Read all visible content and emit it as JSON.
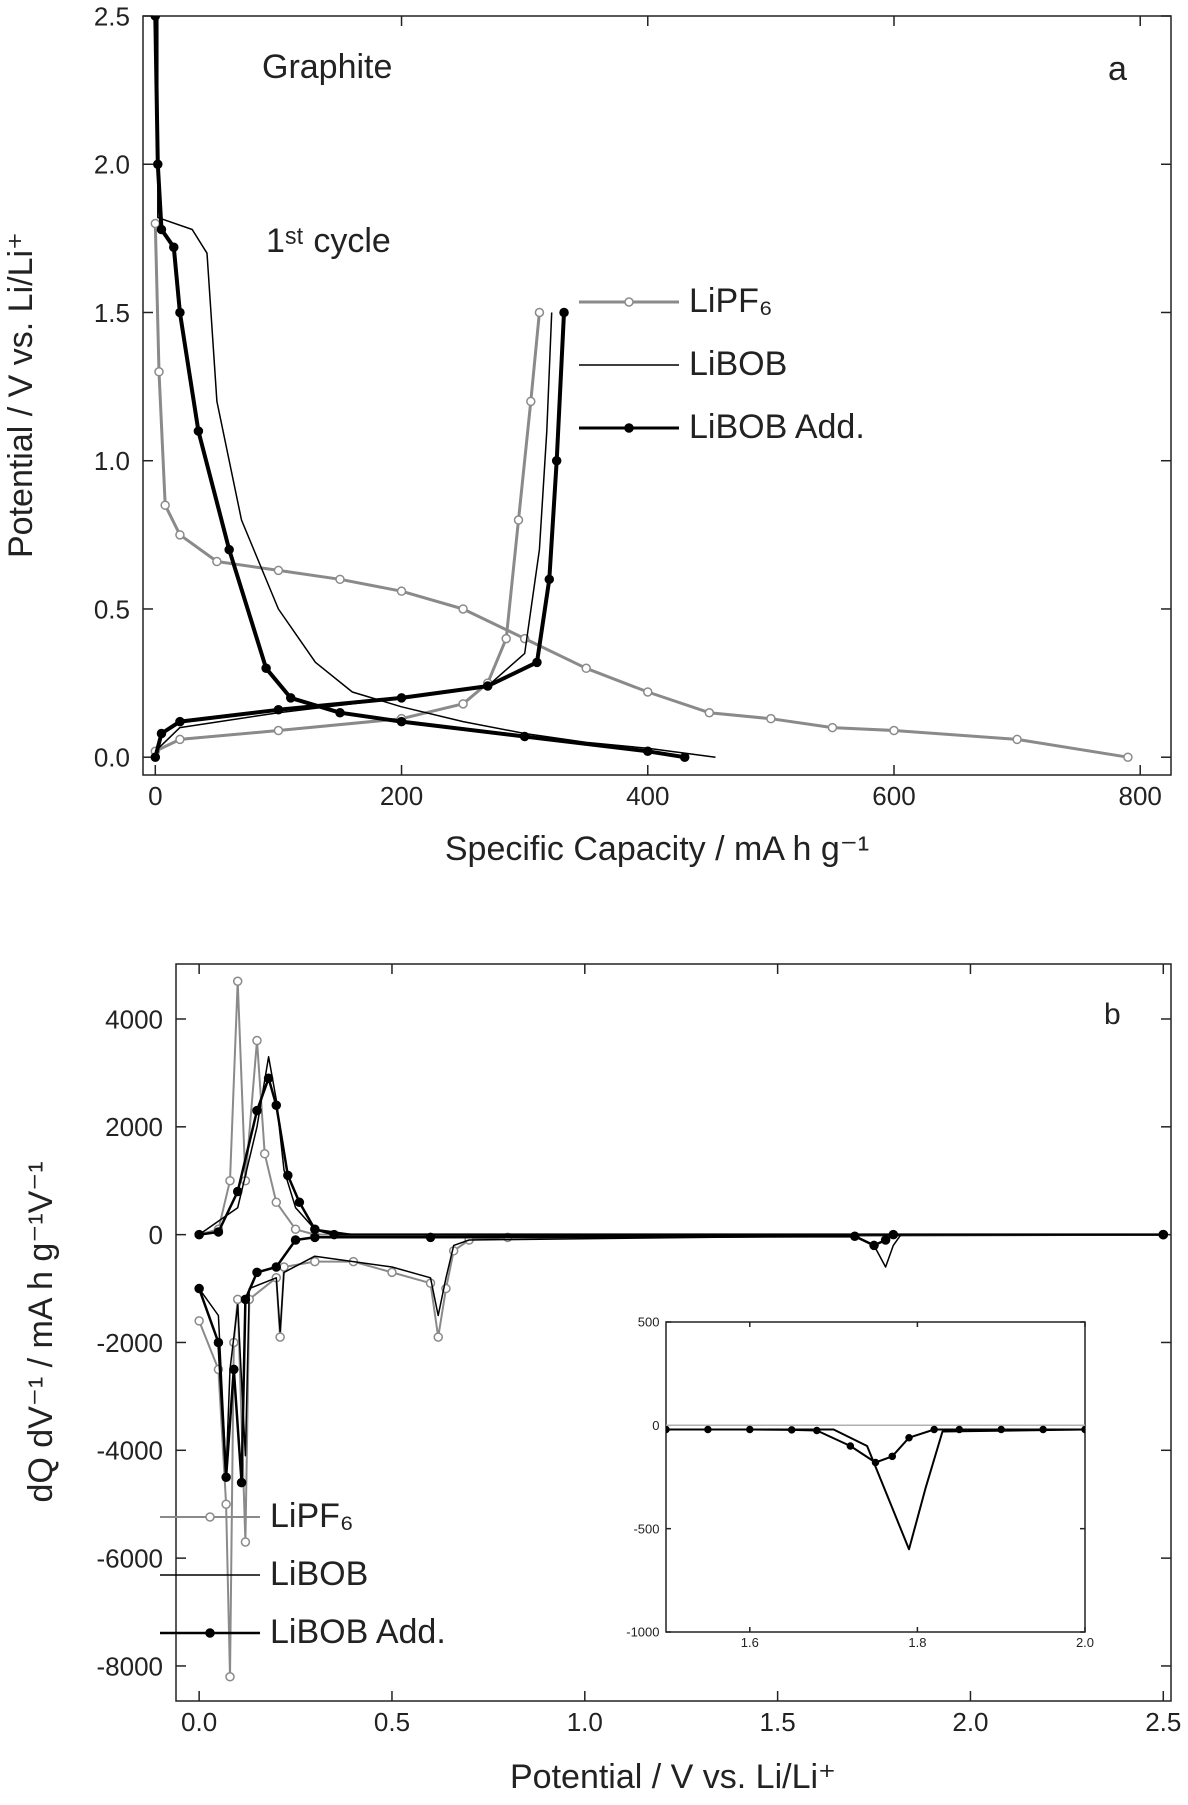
{
  "chart_data": [
    {
      "type": "line",
      "x_label": "Specific Capacity / mA h g⁻¹",
      "y_label": "Potential / V vs. Li/Li⁺",
      "annotations": [
        "Graphite",
        "1ˢᵗ cycle",
        "a"
      ],
      "xlim": [
        -10,
        825
      ],
      "ylim": [
        -0.06,
        2.5
      ],
      "xticks": [
        0,
        200,
        400,
        600,
        800
      ],
      "yticks": [
        {
          "value": 0,
          "label": "0.0"
        },
        0.5,
        {
          "value": 1,
          "label": "1.0"
        },
        1.5,
        {
          "value": 2,
          "label": "2.0"
        },
        2.5
      ],
      "grid": false,
      "legend": "right",
      "series": [
        {
          "name": "LiPF₆",
          "color": "#8a8a8a",
          "marker": "circle-open",
          "line_width": 3,
          "x": [
            0,
            3,
            8,
            20,
            50,
            100,
            150,
            200,
            250,
            300,
            350,
            400,
            450,
            500,
            550,
            600,
            700,
            790,
            null,
            0,
            20,
            100,
            200,
            250,
            270,
            285,
            295,
            305,
            312
          ],
          "values": [
            1.8,
            1.3,
            0.85,
            0.75,
            0.66,
            0.63,
            0.6,
            0.56,
            0.5,
            0.4,
            0.3,
            0.22,
            0.15,
            0.13,
            0.1,
            0.09,
            0.06,
            0.0,
            null,
            0.02,
            0.06,
            0.09,
            0.13,
            0.18,
            0.25,
            0.4,
            0.8,
            1.2,
            1.5
          ]
        },
        {
          "name": "LiBOB",
          "color": "#000000",
          "marker": "none",
          "line_width": 1.5,
          "x": [
            2,
            2,
            30,
            42,
            50,
            70,
            100,
            130,
            160,
            200,
            250,
            300,
            350,
            400,
            455,
            null,
            0,
            20,
            100,
            200,
            270,
            300,
            312,
            318,
            322
          ],
          "values": [
            2.5,
            1.82,
            1.78,
            1.7,
            1.2,
            0.8,
            0.5,
            0.32,
            0.22,
            0.17,
            0.12,
            0.08,
            0.05,
            0.03,
            0.0,
            null,
            0.02,
            0.1,
            0.15,
            0.2,
            0.24,
            0.35,
            0.7,
            1.1,
            1.5
          ]
        },
        {
          "name": "LiBOB Add.",
          "color": "#000000",
          "marker": "circle-filled",
          "line_width": 4,
          "x": [
            0,
            2,
            5,
            15,
            20,
            35,
            60,
            90,
            110,
            150,
            200,
            300,
            400,
            430,
            null,
            0,
            5,
            20,
            100,
            200,
            270,
            310,
            320,
            326,
            332
          ],
          "values": [
            2.5,
            2.0,
            1.78,
            1.72,
            1.5,
            1.1,
            0.7,
            0.3,
            0.2,
            0.15,
            0.12,
            0.07,
            0.02,
            0.0,
            null,
            0.0,
            0.08,
            0.12,
            0.16,
            0.2,
            0.24,
            0.32,
            0.6,
            1.0,
            1.5
          ]
        }
      ]
    },
    {
      "type": "line",
      "x_label": "Potential / V vs. Li/Li⁺",
      "y_label": "dQ dV⁻¹ / mA h g⁻¹V⁻¹",
      "annotations": [
        "b"
      ],
      "xlim": [
        -0.06,
        2.52
      ],
      "ylim": [
        -8650,
        5020
      ],
      "xticks": [
        {
          "value": 0,
          "label": "0.0"
        },
        0.5,
        {
          "value": 1,
          "label": "1.0"
        },
        1.5,
        {
          "value": 2,
          "label": "2.0"
        },
        2.5
      ],
      "yticks": [
        -8000,
        -6000,
        -4000,
        -2000,
        0,
        2000,
        4000
      ],
      "grid": false,
      "legend": "lower left",
      "series": [
        {
          "name": "LiPF₆",
          "color": "#8a8a8a",
          "marker": "circle-open",
          "line_width": 2,
          "x": [
            0,
            0.05,
            0.08,
            0.1,
            0.12,
            0.15,
            0.17,
            0.2,
            0.25,
            0.3,
            2.5,
            null,
            0,
            0.05,
            0.07,
            0.08,
            0.09,
            0.1,
            0.12,
            0.13,
            0.2,
            0.21,
            0.22,
            0.3,
            0.4,
            0.5,
            0.6,
            0.62,
            0.64,
            0.66,
            0.7,
            0.8,
            2.5
          ],
          "values": [
            0,
            100,
            1000,
            4700,
            1000,
            3600,
            1500,
            600,
            100,
            0,
            0,
            null,
            -1600,
            -2500,
            -5000,
            -8200,
            -2000,
            -1200,
            -5700,
            -1200,
            -800,
            -1900,
            -600,
            -500,
            -500,
            -700,
            -900,
            -1900,
            -1000,
            -300,
            -100,
            -50,
            0
          ]
        },
        {
          "name": "LiBOB",
          "color": "#000000",
          "marker": "none",
          "line_width": 1.5,
          "x": [
            0,
            0.1,
            0.15,
            0.18,
            0.2,
            0.22,
            0.25,
            0.3,
            0.4,
            2.5,
            null,
            0,
            0.05,
            0.07,
            0.08,
            0.1,
            0.12,
            0.13,
            0.2,
            0.21,
            0.22,
            0.3,
            0.5,
            0.6,
            0.62,
            0.64,
            0.66,
            0.7,
            1.7,
            1.75,
            1.78,
            1.8,
            1.82,
            2.5
          ],
          "values": [
            0,
            500,
            2000,
            3300,
            2500,
            1200,
            500,
            100,
            0,
            0,
            null,
            -1000,
            -1500,
            -4400,
            -2500,
            -1300,
            -4100,
            -1000,
            -800,
            -1800,
            -700,
            -400,
            -600,
            -800,
            -1500,
            -800,
            -200,
            -100,
            -20,
            -200,
            -600,
            -200,
            0,
            0
          ]
        },
        {
          "name": "LiBOB Add.",
          "color": "#000000",
          "marker": "circle-filled",
          "line_width": 2.5,
          "x": [
            0,
            0.05,
            0.1,
            0.15,
            0.18,
            0.2,
            0.23,
            0.26,
            0.3,
            0.35,
            2.5,
            null,
            0,
            0.05,
            0.07,
            0.09,
            0.11,
            0.12,
            0.15,
            0.2,
            0.25,
            0.3,
            0.6,
            1.7,
            1.75,
            1.78,
            1.8,
            2.5
          ],
          "values": [
            0,
            50,
            800,
            2300,
            2900,
            2400,
            1100,
            600,
            100,
            0,
            0,
            null,
            -1000,
            -2000,
            -4500,
            -2500,
            -4600,
            -1200,
            -700,
            -600,
            -100,
            -50,
            -50,
            -30,
            -200,
            -100,
            0,
            0
          ]
        }
      ]
    },
    {
      "type": "line",
      "xlim": [
        1.5,
        2.0
      ],
      "ylim": [
        -1000,
        500
      ],
      "xticks": [
        1.6,
        1.8,
        {
          "value": 2,
          "label": "2.0"
        }
      ],
      "yticks": [
        -1000,
        -500,
        0,
        500
      ],
      "grid": false,
      "series": [
        {
          "color": "#b0b0b0",
          "marker": "none",
          "line_width": 1.5,
          "x": [
            1.5,
            2.0
          ],
          "values": [
            0,
            0
          ]
        },
        {
          "color": "#000000",
          "marker": "none",
          "line_width": 2,
          "x": [
            1.5,
            1.7,
            1.74,
            1.77,
            1.79,
            1.81,
            1.83,
            2.0
          ],
          "values": [
            -20,
            -20,
            -100,
            -400,
            -600,
            -300,
            -30,
            -20
          ]
        },
        {
          "color": "#000000",
          "marker": "circle-filled",
          "line_width": 2,
          "x": [
            1.5,
            1.55,
            1.6,
            1.65,
            1.68,
            1.72,
            1.75,
            1.77,
            1.79,
            1.82,
            1.85,
            1.9,
            1.95,
            2.0
          ],
          "values": [
            -20,
            -20,
            -20,
            -22,
            -25,
            -100,
            -180,
            -150,
            -60,
            -20,
            -20,
            -20,
            -20,
            -20
          ]
        }
      ]
    }
  ]
}
